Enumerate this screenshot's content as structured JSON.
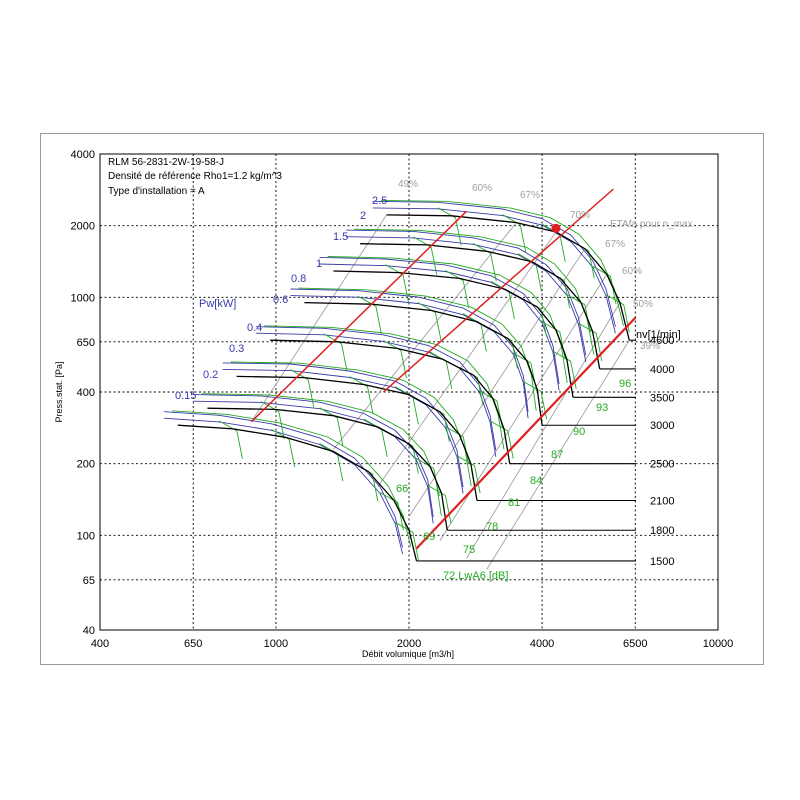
{
  "header": {
    "line1": "RLM 56-2831-2W-19-58-J",
    "line2": "Densité de référence Rho1=1.2 kg/m^3",
    "line3": "Type d'installation = A"
  },
  "chart_data": {
    "type": "line",
    "xlabel": "Débit volumique [m3/h]",
    "ylabel": "Press.stat. [Pa]",
    "xscale": "log",
    "yscale": "log",
    "xlim": [
      400,
      10000
    ],
    "ylim": [
      40,
      4000
    ],
    "x_ticks": [
      400,
      650,
      1000,
      2000,
      4000,
      6500,
      10000
    ],
    "y_ticks": [
      40,
      65,
      100,
      200,
      400,
      650,
      1000,
      2000,
      4000
    ],
    "grid": true,
    "power_axis_label": "Pw[kW]",
    "power_labels": [
      "2.5",
      "2",
      "1.5",
      "1",
      "0.8",
      "0.6",
      "0.4",
      "0.3",
      "0.2",
      "0.15"
    ],
    "speed_axis_label": "nv[1/min]",
    "speed_labels": [
      "4600",
      "4000",
      "3500",
      "3000",
      "2500",
      "2100",
      "1800",
      "1500"
    ],
    "efficiency_labels": [
      "49%",
      "60%",
      "67%",
      "70%",
      "67%",
      "60%",
      "50%",
      "39%"
    ],
    "efficiency_max_label": "ETAfa pour n_max",
    "noise_labels": [
      "96",
      "93",
      "90",
      "87",
      "84",
      "81",
      "78",
      "75",
      "72 LwA6 [dB]",
      "69",
      "66"
    ],
    "speed_curves": [
      {
        "name": "4600",
        "label": "4600",
        "points": [
          [
            1780,
            2220
          ],
          [
            2500,
            2200
          ],
          [
            3500,
            2060
          ],
          [
            4300,
            1880
          ],
          [
            5000,
            1600
          ],
          [
            5600,
            1250
          ],
          [
            6000,
            950
          ],
          [
            6300,
            660
          ]
        ]
      },
      {
        "name": "4000",
        "label": "4000",
        "points": [
          [
            1550,
            1680
          ],
          [
            2200,
            1660
          ],
          [
            3000,
            1560
          ],
          [
            3800,
            1410
          ],
          [
            4400,
            1200
          ],
          [
            4900,
            950
          ],
          [
            5200,
            720
          ],
          [
            5400,
            500
          ]
        ]
      },
      {
        "name": "3500",
        "label": "3500",
        "points": [
          [
            1350,
            1290
          ],
          [
            1900,
            1270
          ],
          [
            2600,
            1200
          ],
          [
            3300,
            1080
          ],
          [
            3900,
            910
          ],
          [
            4300,
            730
          ],
          [
            4550,
            550
          ],
          [
            4700,
            380
          ]
        ]
      },
      {
        "name": "3000",
        "label": "3000",
        "points": [
          [
            1160,
            950
          ],
          [
            1650,
            935
          ],
          [
            2250,
            880
          ],
          [
            2850,
            790
          ],
          [
            3350,
            670
          ],
          [
            3700,
            540
          ],
          [
            3900,
            410
          ],
          [
            4000,
            290
          ]
        ]
      },
      {
        "name": "2500",
        "label": "2500",
        "points": [
          [
            970,
            660
          ],
          [
            1380,
            650
          ],
          [
            1880,
            610
          ],
          [
            2380,
            550
          ],
          [
            2800,
            470
          ],
          [
            3100,
            375
          ],
          [
            3280,
            280
          ],
          [
            3380,
            200
          ]
        ]
      },
      {
        "name": "2100",
        "label": "2100",
        "points": [
          [
            815,
            465
          ],
          [
            1160,
            460
          ],
          [
            1580,
            430
          ],
          [
            2000,
            390
          ],
          [
            2350,
            330
          ],
          [
            2600,
            265
          ],
          [
            2760,
            200
          ],
          [
            2850,
            140
          ]
        ]
      },
      {
        "name": "1800",
        "label": "1800",
        "points": [
          [
            700,
            342
          ],
          [
            995,
            338
          ],
          [
            1350,
            318
          ],
          [
            1700,
            285
          ],
          [
            2000,
            242
          ],
          [
            2230,
            195
          ],
          [
            2370,
            150
          ],
          [
            2440,
            105
          ]
        ]
      },
      {
        "name": "1500",
        "label": "1500",
        "points": [
          [
            600,
            290
          ],
          [
            800,
            280
          ],
          [
            1050,
            258
          ],
          [
            1350,
            225
          ],
          [
            1620,
            185
          ],
          [
            1850,
            140
          ],
          [
            2000,
            105
          ],
          [
            2080,
            78
          ]
        ]
      }
    ],
    "system_lines": [
      {
        "name": "system-line-1",
        "points": [
          [
            880,
            300
          ],
          [
            2700,
            2300
          ]
        ]
      },
      {
        "name": "system-line-2",
        "points": [
          [
            1750,
            400
          ],
          [
            5800,
            2850
          ]
        ]
      },
      {
        "name": "system-line-3",
        "points": [
          [
            2080,
            88
          ],
          [
            6500,
            820
          ]
        ]
      }
    ],
    "max_efficiency_point": {
      "x": 4300,
      "y": 1950,
      "color": "#e02020"
    },
    "colors": {
      "speed": "#000000",
      "power": "#3a3aaa",
      "efficiency": "#a0a0a0",
      "noise": "#22aa22",
      "system": "#e02020",
      "grid": "#000000"
    }
  }
}
